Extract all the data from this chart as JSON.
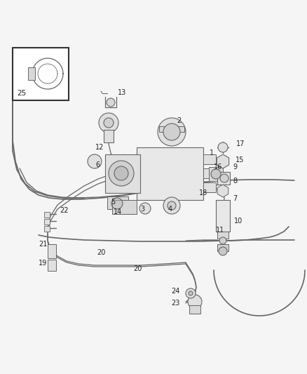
{
  "bg_color": "#f5f5f5",
  "line_color": "#666666",
  "label_color": "#222222",
  "figsize": [
    4.38,
    5.33
  ],
  "dpi": 100,
  "label_fontsize": 7.0,
  "lw_body": 1.2,
  "lw_tube": 0.9,
  "lw_part": 0.8
}
